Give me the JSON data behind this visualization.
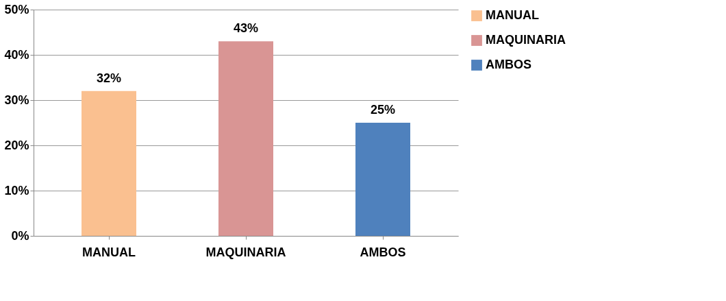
{
  "chart_data": {
    "type": "bar",
    "categories": [
      "MANUAL",
      "MAQUINARIA",
      "AMBOS"
    ],
    "series": [
      {
        "name": "MANUAL",
        "color": "#fac090",
        "values": [
          32,
          null,
          null
        ],
        "value_labels": [
          "32%",
          null,
          null
        ]
      },
      {
        "name": "MAQUINARIA",
        "color": "#d99594",
        "values": [
          null,
          43,
          null
        ],
        "value_labels": [
          null,
          "43%",
          null
        ]
      },
      {
        "name": "AMBOS",
        "color": "#4f81bd",
        "values": [
          null,
          null,
          25
        ],
        "value_labels": [
          null,
          null,
          "25%"
        ]
      }
    ],
    "ylim": [
      0,
      50
    ],
    "yticks": [
      {
        "value": 0,
        "label": "0%"
      },
      {
        "value": 10,
        "label": "10%"
      },
      {
        "value": 20,
        "label": "20%"
      },
      {
        "value": 30,
        "label": "30%"
      },
      {
        "value": 40,
        "label": "40%"
      },
      {
        "value": 50,
        "label": "50%"
      }
    ],
    "grid": "y",
    "legend": "right"
  }
}
